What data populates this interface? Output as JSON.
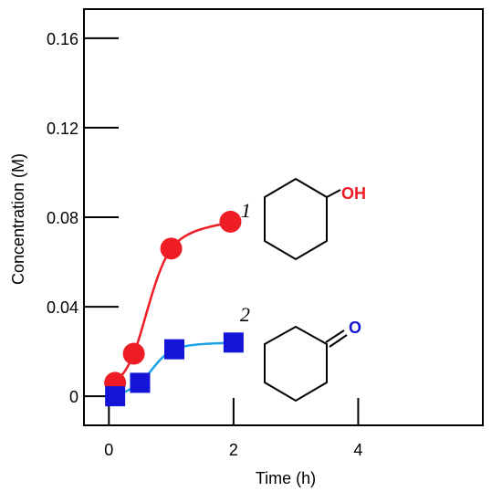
{
  "chart_data": {
    "type": "line",
    "xlabel": "Time (h)",
    "ylabel": "Concentration (M)",
    "xlim": [
      -0.4,
      6.0
    ],
    "ylim": [
      -0.013,
      0.173
    ],
    "x_ticks": [
      {
        "value": 0,
        "label": "0"
      },
      {
        "value": 2,
        "label": "2"
      },
      {
        "value": 4,
        "label": "4"
      }
    ],
    "y_ticks": [
      {
        "value": 0,
        "label": "0"
      },
      {
        "value": 0.04,
        "label": "0.04"
      },
      {
        "value": 0.08,
        "label": "0.08"
      },
      {
        "value": 0.12,
        "label": "0.12"
      },
      {
        "value": 0.16,
        "label": "0.16"
      }
    ],
    "grid": false,
    "series": [
      {
        "label": "1",
        "marker": "circle",
        "color": "#ee1c25",
        "x": [
          0.1,
          0.4,
          1.0,
          1.95
        ],
        "y": [
          0.006,
          0.019,
          0.066,
          0.078
        ],
        "group_label": "OH",
        "structure": "cyclohexanol"
      },
      {
        "label": "2",
        "marker": "square",
        "color": "#1414d8",
        "line_color": "#1aa3e8",
        "x": [
          0.1,
          0.5,
          1.05,
          2.0
        ],
        "y": [
          0.0,
          0.006,
          0.021,
          0.024
        ],
        "group_label": "O",
        "structure": "cyclohexanone"
      }
    ]
  }
}
